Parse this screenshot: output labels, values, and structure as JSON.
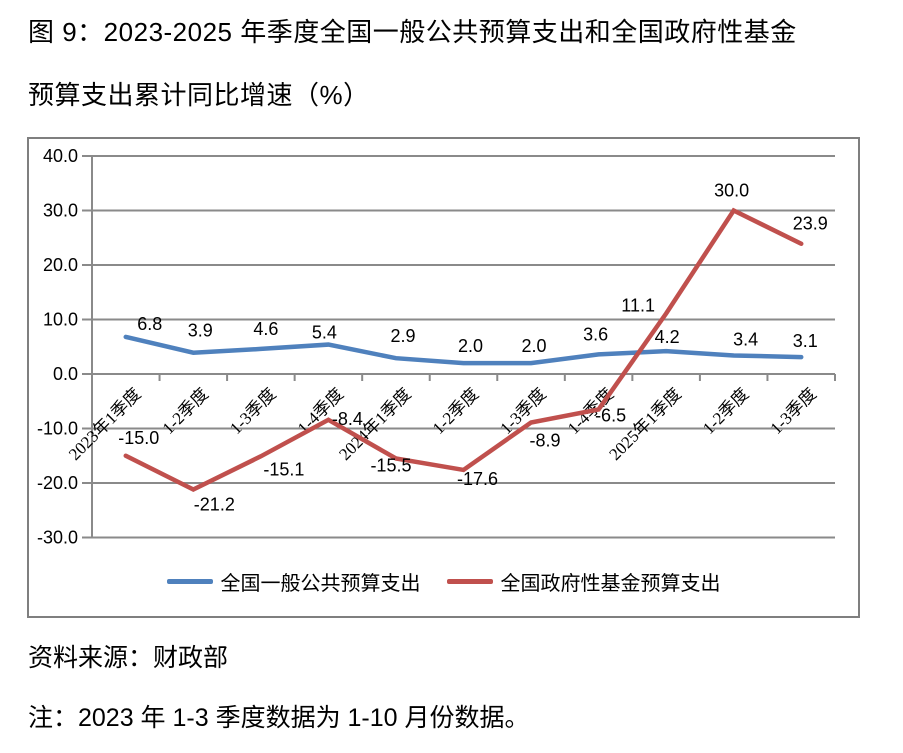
{
  "figure": {
    "title_line1": "图 9：2023-2025 年季度全国一般公共预算支出和全国政府性基金",
    "title_line2": "预算支出累计同比增速（%）",
    "source": "资料来源：财政部",
    "note": "注：2023 年 1-3 季度数据为 1-10 月份数据。"
  },
  "colors": {
    "series_general_budget": "#4F81BD",
    "series_govt_fund": "#C0504D",
    "axis_grid": "#8a8a8a",
    "chart_border": "#7f7f7f",
    "text": "#000000"
  },
  "chart_data": {
    "type": "line",
    "title": "2023-2025 年季度全国一般公共预算支出和全国政府性基金预算支出累计同比增速（%）",
    "categories": [
      "2023年1季度",
      "1-2季度",
      "1-3季度",
      "1-4季度",
      "2024年1季度",
      "1-2季度",
      "1-3季度",
      "1-4季度",
      "2025年1季度",
      "1-2季度",
      "1-3季度"
    ],
    "series": [
      {
        "name": "全国一般公共预算支出",
        "color": "#4F81BD",
        "values": [
          6.8,
          3.9,
          4.6,
          5.4,
          2.9,
          2.0,
          2.0,
          3.6,
          4.2,
          3.4,
          3.1
        ],
        "label_dx": [
          24,
          7,
          5,
          -4,
          7,
          7,
          3,
          -3,
          1,
          12,
          4
        ],
        "label_dy": [
          -7,
          -16,
          -14,
          -6,
          -16,
          -11,
          -11,
          -14,
          -8,
          -10,
          -10
        ]
      },
      {
        "name": "全国政府性基金预算支出",
        "color": "#C0504D",
        "values": [
          -15.0,
          -21.2,
          -15.1,
          -8.4,
          -15.5,
          -17.6,
          -8.9,
          -6.5,
          11.1,
          30.0,
          23.9
        ],
        "label_dx": [
          13,
          21,
          23,
          19,
          -5,
          14,
          14,
          12,
          -28,
          -2,
          9
        ],
        "label_dy": [
          -12,
          21,
          19,
          5,
          13,
          15,
          24,
          12,
          -2,
          -14,
          -14
        ]
      }
    ],
    "ylim": [
      -30,
      40
    ],
    "ytick_step": 10,
    "ytick_labels": [
      "40.0",
      "30.0",
      "20.0",
      "10.0",
      "0.0",
      "-10.0",
      "-20.0",
      "-30.0"
    ],
    "grid": true,
    "legend_position": "bottom",
    "label_decimals": 1
  }
}
